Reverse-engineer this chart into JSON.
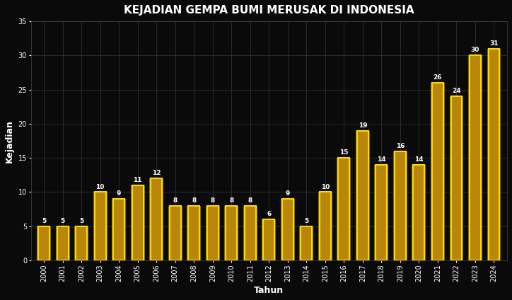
{
  "title": "KEJADIAN GEMPA BUMI MERUSAK DI INDONESIA",
  "xlabel": "Tahun",
  "ylabel": "Kejadian",
  "years": [
    2000,
    2001,
    2002,
    2003,
    2004,
    2005,
    2006,
    2007,
    2008,
    2009,
    2010,
    2011,
    2012,
    2013,
    2014,
    2015,
    2016,
    2017,
    2018,
    2019,
    2020,
    2021,
    2022,
    2023,
    2024
  ],
  "values": [
    5,
    5,
    5,
    10,
    9,
    11,
    12,
    8,
    8,
    8,
    8,
    8,
    6,
    9,
    5,
    10,
    15,
    19,
    14,
    16,
    14,
    26,
    24,
    30,
    31
  ],
  "bar_color": "#B8860B",
  "bar_edge_color": "#FFD700",
  "background_color": "#0a0a0a",
  "plot_bg_color": "#0a0a0a",
  "text_color": "#FFFFFF",
  "grid_color": "#444444",
  "ylim": [
    0,
    35
  ],
  "yticks": [
    0,
    5,
    10,
    15,
    20,
    25,
    30,
    35
  ],
  "title_fontsize": 11,
  "label_fontsize": 9,
  "tick_fontsize": 7,
  "bar_label_fontsize": 6.5,
  "bar_width": 0.6
}
